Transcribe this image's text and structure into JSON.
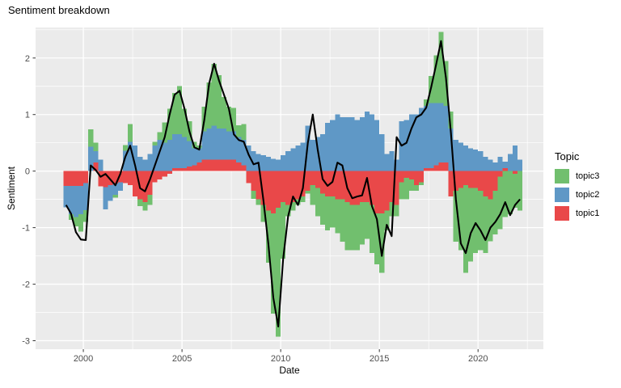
{
  "title": "Sentiment breakdown",
  "x_axis": {
    "label": "Date",
    "tick_labels": [
      "2000",
      "2005",
      "2010",
      "2015",
      "2020"
    ],
    "tick_values": [
      2000,
      2005,
      2010,
      2015,
      2020
    ],
    "minor_tick_values": [
      2002.5,
      2007.5,
      2012.5,
      2017.5,
      2022.5
    ],
    "range": [
      1997.58,
      2023.31
    ]
  },
  "y_axis": {
    "label": "Sentiment",
    "tick_labels": [
      "2",
      "1",
      "0",
      "-1",
      "-2",
      "-3"
    ],
    "tick_values": [
      2,
      1,
      0,
      -1,
      -2,
      -3
    ],
    "minor_tick_values": [
      2.5,
      1.5,
      0.5,
      -0.5,
      -1.5,
      -2.5
    ],
    "range": [
      -3.15,
      2.54
    ]
  },
  "legend": {
    "title": "Topic",
    "items": [
      {
        "label": "topic3",
        "color": "#71BF6E"
      },
      {
        "label": "topic2",
        "color": "#5F98C6"
      },
      {
        "label": "topic1",
        "color": "#E94849"
      }
    ]
  },
  "colors": {
    "panel_bg": "#EBEBEB",
    "grid": "#FFFFFF",
    "line": "#000000",
    "tick_text": "#4D4D4D",
    "tick_mark": "#333333"
  },
  "chart_data": {
    "type": "bar",
    "subtype": "stacked-quarterly-bars-with-line-overlay",
    "title": "Sentiment breakdown",
    "xlabel": "Date",
    "ylabel": "Sentiment",
    "x_start": 1999.125,
    "x_step": 0.25,
    "n_points": 93,
    "first_period": "1999Q1",
    "last_period": "2022Q1",
    "series": [
      {
        "name": "topic1",
        "color": "#E94849",
        "values": [
          -0.26,
          -0.26,
          -0.26,
          -0.26,
          -0.21,
          0,
          0.15,
          -0.27,
          -0.28,
          -0.25,
          -0.22,
          -0.2,
          -0.21,
          -0.25,
          -0.45,
          -0.5,
          -0.55,
          -0.42,
          -0.2,
          -0.15,
          -0.1,
          -0.05,
          0.05,
          0.05,
          0.05,
          0.08,
          0.1,
          0.15,
          0.2,
          0.2,
          0.2,
          0.2,
          0.2,
          0.2,
          0.2,
          0.15,
          0.1,
          -0.21,
          -0.35,
          -0.5,
          -0.6,
          -0.7,
          -0.75,
          -0.65,
          -0.55,
          -0.6,
          -0.55,
          -0.5,
          -0.45,
          -0.35,
          -0.25,
          -0.3,
          -0.4,
          -0.45,
          -0.45,
          -0.5,
          -0.5,
          -0.55,
          -0.6,
          -0.6,
          -0.55,
          -0.55,
          -0.6,
          -0.75,
          -0.75,
          -0.7,
          -0.55,
          -0.6,
          -0.2,
          -0.12,
          -0.15,
          -0.25,
          -0.2,
          0.05,
          0.05,
          0.1,
          0.15,
          0.15,
          -0.45,
          -0.35,
          -0.3,
          -0.25,
          -0.3,
          -0.3,
          -0.35,
          -0.45,
          -0.5,
          -0.35,
          -0.1,
          0.05,
          0,
          -0.05,
          0
        ]
      },
      {
        "name": "topic2",
        "color": "#5F98C6",
        "values": [
          -0.38,
          -0.5,
          -0.55,
          -0.5,
          -0.48,
          0.43,
          0.2,
          0.2,
          -0.4,
          -0.28,
          -0.2,
          -0.15,
          0.36,
          0.52,
          0.45,
          0.25,
          0.2,
          0.3,
          0.45,
          0.55,
          0.5,
          0.55,
          0.6,
          0.6,
          0.55,
          0.45,
          0.3,
          0.25,
          0.5,
          0.55,
          0.6,
          0.55,
          0.55,
          0.5,
          0.5,
          0.45,
          0.45,
          0.45,
          0.35,
          0.3,
          0.28,
          0.25,
          0.22,
          0.2,
          0.28,
          0.35,
          0.4,
          0.45,
          0.5,
          0.8,
          0.55,
          0.6,
          0.65,
          0.85,
          0.9,
          1,
          0.95,
          0.95,
          0.95,
          0.9,
          0.95,
          1.05,
          1,
          0.9,
          0.65,
          0.3,
          0.35,
          0.2,
          0.88,
          0.9,
          1,
          1,
          1.12,
          1.1,
          1.15,
          1.1,
          1.05,
          1,
          0.75,
          0.55,
          0.5,
          0.45,
          0.4,
          0.38,
          0.35,
          0.25,
          0.2,
          0.15,
          0.25,
          0.12,
          0.3,
          0.45,
          0.2
        ]
      },
      {
        "name": "topic3",
        "color": "#71BF6E",
        "values": [
          0,
          -0.1,
          -0.17,
          -0.31,
          -0.21,
          0.31,
          0.15,
          0,
          0,
          0,
          -0.05,
          0,
          0.1,
          0.31,
          0,
          -0.12,
          -0.15,
          -0.18,
          0.07,
          0.14,
          0.36,
          0.55,
          0.73,
          0.85,
          0.5,
          0.35,
          0.12,
          0.05,
          0.44,
          0.82,
          1.1,
          0.95,
          0.56,
          0.44,
          0.42,
          0.21,
          0.28,
          0,
          -0.14,
          -0.1,
          -0.3,
          -0.92,
          -1.77,
          -2.28,
          -1,
          -0.2,
          -0.15,
          -0.1,
          -0.1,
          -0.05,
          -0.35,
          -0.5,
          -0.55,
          -0.6,
          -0.55,
          -0.6,
          -0.75,
          -0.85,
          -0.8,
          -0.8,
          -0.75,
          -0.65,
          -0.85,
          -0.9,
          -1.05,
          -0.35,
          -0.25,
          -0.2,
          -0.3,
          -0.38,
          -0.2,
          -0.1,
          -0.05,
          0.12,
          0.48,
          0.85,
          1.26,
          0.8,
          0.3,
          -0.9,
          -1.1,
          -1.55,
          -1.3,
          -1.15,
          -1.05,
          -1,
          -0.74,
          -0.77,
          -0.93,
          -0.81,
          -0.76,
          -0.6,
          -0.7
        ]
      }
    ],
    "line": {
      "name": "overall-sentiment",
      "color": "#000000",
      "values": [
        -0.6,
        -0.75,
        -1.08,
        -1.21,
        -1.22,
        0.1,
        0.02,
        -0.1,
        -0.05,
        -0.15,
        -0.25,
        -0.05,
        0.25,
        0.45,
        0.1,
        -0.3,
        -0.36,
        -0.15,
        0.1,
        0.35,
        0.6,
        1,
        1.35,
        1.42,
        1.1,
        0.7,
        0.42,
        0.38,
        0.9,
        1.55,
        1.9,
        1.6,
        1.35,
        1.1,
        0.65,
        0.55,
        0.52,
        0.29,
        0.12,
        0.15,
        -0.52,
        -1.29,
        -2.24,
        -2.75,
        -1.55,
        -0.8,
        -0.45,
        -0.6,
        -0.3,
        0.5,
        1,
        0.38,
        -0.14,
        -0.26,
        -0.19,
        0.15,
        0.1,
        -0.3,
        -0.48,
        -0.45,
        -0.43,
        -0.12,
        -0.62,
        -0.85,
        -1.5,
        -0.95,
        -1.15,
        0.6,
        0.45,
        0.5,
        0.75,
        0.95,
        1,
        1.12,
        1.48,
        1.88,
        2.3,
        1.65,
        0.67,
        -0.5,
        -1.28,
        -1.45,
        -1.1,
        -0.92,
        -1.05,
        -1.22,
        -1,
        -0.9,
        -0.76,
        -0.55,
        -0.78,
        -0.6,
        -0.5
      ]
    }
  }
}
